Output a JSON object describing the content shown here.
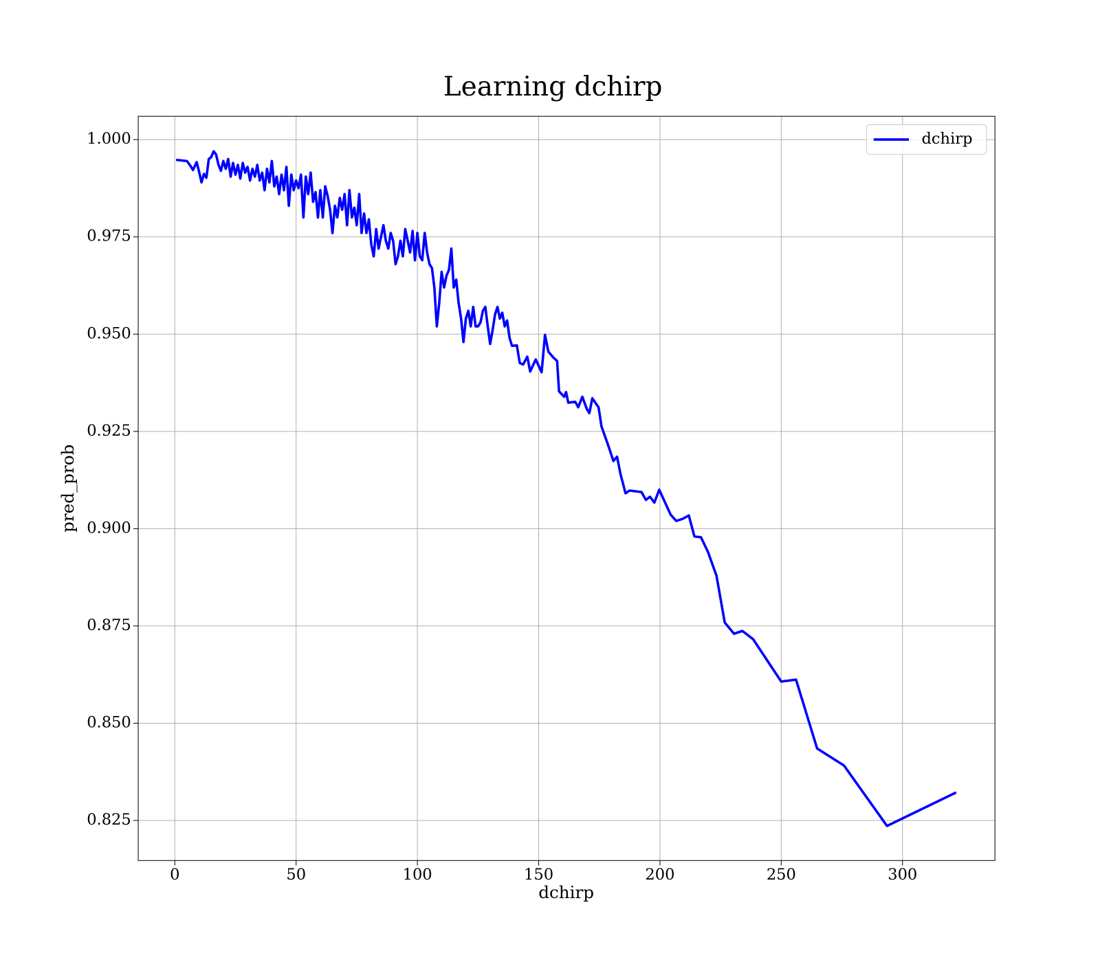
{
  "chart_data": {
    "type": "line",
    "title": "Learning dchirp",
    "xlabel": "dchirp",
    "ylabel": "pred_prob",
    "x": [
      0.5,
      5,
      6.5,
      7.5,
      9,
      10,
      11,
      12,
      13,
      14,
      15,
      16,
      17,
      18,
      19,
      20,
      21,
      22,
      23,
      24,
      25,
      26,
      27,
      28,
      29,
      30,
      31,
      32,
      33,
      34,
      35,
      36,
      37,
      38,
      39,
      40,
      41,
      42,
      43,
      44,
      45,
      46,
      47,
      48,
      49,
      50,
      51,
      52,
      53,
      54,
      55,
      56,
      57,
      58,
      59,
      60,
      61,
      62,
      63,
      64,
      65,
      66,
      67,
      68,
      69,
      70,
      71,
      72,
      73,
      74,
      75,
      76,
      77,
      78,
      79,
      80,
      81,
      82,
      83,
      84,
      85,
      86,
      87,
      88,
      89,
      90,
      91,
      92,
      93,
      94,
      95,
      96,
      97,
      98,
      99,
      100,
      101,
      102,
      103,
      104,
      105,
      106,
      107,
      108,
      109,
      110,
      111,
      112,
      113,
      114,
      115,
      116,
      117,
      118,
      119,
      120,
      121,
      122,
      123,
      124,
      125,
      126,
      127,
      128,
      129,
      130,
      131,
      132,
      133,
      134,
      135,
      136,
      137,
      138,
      139,
      141,
      142.2,
      143.6,
      145.3,
      146.5,
      148.8,
      151.2,
      152.6,
      154,
      156,
      157.6,
      158.4,
      160.5,
      161.3,
      162.2,
      165.1,
      166.3,
      168,
      169.8,
      170.9,
      172.1,
      174.7,
      175.9,
      178.5,
      180.8,
      182.3,
      183.7,
      185.8,
      187.5,
      192.4,
      194.2,
      195.9,
      197.7,
      199.7,
      204.4,
      206.7,
      209.3,
      211.9,
      214.2,
      216.9,
      219.8,
      223.3,
      226.7,
      230.5,
      234,
      238.4,
      250,
      256.1,
      264.8,
      275.9,
      293.6,
      322.1
    ],
    "series": [
      {
        "name": "dchirp",
        "color": "#0000ff",
        "values": [
          0.9948,
          0.9945,
          0.9932,
          0.9922,
          0.9942,
          0.9918,
          0.989,
          0.9912,
          0.9902,
          0.995,
          0.9955,
          0.997,
          0.9962,
          0.9935,
          0.992,
          0.9945,
          0.9925,
          0.995,
          0.9905,
          0.994,
          0.991,
          0.9935,
          0.99,
          0.994,
          0.9915,
          0.993,
          0.9895,
          0.9925,
          0.9905,
          0.9935,
          0.9895,
          0.9915,
          0.987,
          0.9925,
          0.989,
          0.9945,
          0.988,
          0.9905,
          0.986,
          0.991,
          0.987,
          0.993,
          0.983,
          0.991,
          0.987,
          0.9895,
          0.9875,
          0.991,
          0.98,
          0.9905,
          0.986,
          0.9915,
          0.984,
          0.9865,
          0.98,
          0.987,
          0.98,
          0.988,
          0.9855,
          0.982,
          0.976,
          0.983,
          0.98,
          0.985,
          0.982,
          0.986,
          0.978,
          0.987,
          0.98,
          0.9825,
          0.978,
          0.986,
          0.976,
          0.981,
          0.976,
          0.9795,
          0.973,
          0.97,
          0.977,
          0.972,
          0.975,
          0.978,
          0.974,
          0.972,
          0.976,
          0.974,
          0.968,
          0.97,
          0.974,
          0.97,
          0.977,
          0.974,
          0.971,
          0.9765,
          0.969,
          0.976,
          0.97,
          0.969,
          0.976,
          0.971,
          0.968,
          0.967,
          0.962,
          0.952,
          0.958,
          0.966,
          0.962,
          0.965,
          0.9665,
          0.972,
          0.962,
          0.964,
          0.958,
          0.954,
          0.948,
          0.954,
          0.956,
          0.952,
          0.957,
          0.952,
          0.952,
          0.953,
          0.956,
          0.957,
          0.952,
          0.9475,
          0.951,
          0.955,
          0.957,
          0.954,
          0.9555,
          0.952,
          0.9535,
          0.949,
          0.947,
          0.9471,
          0.9426,
          0.9422,
          0.9442,
          0.9404,
          0.9435,
          0.9402,
          0.9498,
          0.9455,
          0.944,
          0.9431,
          0.9353,
          0.9339,
          0.9351,
          0.9324,
          0.9326,
          0.9312,
          0.9339,
          0.9308,
          0.9297,
          0.9335,
          0.9312,
          0.9263,
          0.9217,
          0.9174,
          0.9185,
          0.9141,
          0.9091,
          0.9098,
          0.9094,
          0.9074,
          0.9082,
          0.9067,
          0.91,
          0.9036,
          0.902,
          0.9025,
          0.9034,
          0.898,
          0.8978,
          0.894,
          0.8879,
          0.8759,
          0.873,
          0.8737,
          0.8716,
          0.8607,
          0.8612,
          0.8435,
          0.8391,
          0.8236,
          0.8322
        ]
      }
    ],
    "xlim": [
      -15.1,
      338.1
    ],
    "xticks": [
      0,
      50,
      100,
      150,
      200,
      250,
      300
    ],
    "ylim": [
      0.8147,
      1.006
    ],
    "yticks": [
      {
        "value": 0.825,
        "label": "0.825"
      },
      {
        "value": 0.85,
        "label": "0.850"
      },
      {
        "value": 0.875,
        "label": "0.875"
      },
      {
        "value": 0.9,
        "label": "0.900"
      },
      {
        "value": 0.925,
        "label": "0.925"
      },
      {
        "value": 0.95,
        "label": "0.950"
      },
      {
        "value": 0.975,
        "label": "0.975"
      },
      {
        "value": 1.0,
        "label": "1.000"
      }
    ],
    "grid": true,
    "legend": "upper right"
  }
}
